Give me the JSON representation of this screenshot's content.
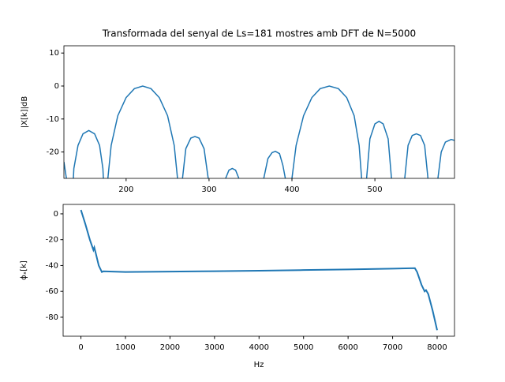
{
  "chart_data": [
    {
      "type": "line",
      "title": "Transformada del senyal de Ls=181 mostres amb DFT de N=5000",
      "ylabel": "|X[k]|dB",
      "color": "#1f77b4",
      "x": [
        125,
        128,
        130,
        134,
        137,
        142,
        148,
        155,
        162,
        168,
        172,
        175,
        176,
        178,
        182,
        190,
        200,
        210,
        220,
        230,
        240,
        250,
        258,
        262,
        264,
        266,
        268,
        272,
        278,
        283,
        288,
        294,
        299,
        301,
        317,
        320,
        324,
        328,
        332,
        336,
        339,
        363,
        366,
        371,
        376,
        380,
        385,
        389,
        392,
        394,
        398,
        400,
        405,
        414,
        424,
        434,
        445,
        456,
        466,
        475,
        481,
        484,
        486,
        488,
        490,
        494,
        500,
        505,
        510,
        516,
        520,
        522,
        534,
        536,
        540,
        545,
        550,
        555,
        560,
        564,
        566,
        574,
        576,
        580,
        585,
        592,
        596
      ],
      "values": [
        -23,
        -28,
        -40,
        -40,
        -25,
        -18,
        -14.5,
        -13.5,
        -14.5,
        -18,
        -25,
        -40,
        -40,
        -28,
        -18,
        -9,
        -3.5,
        -0.8,
        0,
        -0.8,
        -3.5,
        -9,
        -18,
        -28,
        -40,
        -40,
        -28,
        -19,
        -15.8,
        -15.3,
        -15.8,
        -19,
        -28,
        -40,
        -40,
        -28,
        -25.5,
        -25,
        -25.5,
        -28,
        -40,
        -40,
        -28,
        -22,
        -20.2,
        -19.8,
        -20.5,
        -24,
        -28,
        -40,
        -40,
        -28,
        -18,
        -9,
        -3.5,
        -0.8,
        0,
        -0.8,
        -3.5,
        -9,
        -18,
        -28,
        -40,
        -40,
        -28,
        -16,
        -11.5,
        -10.7,
        -11.5,
        -16,
        -28,
        -40,
        -40,
        -28,
        -18,
        -15,
        -14.5,
        -15,
        -18,
        -28,
        -40,
        -40,
        -28,
        -20,
        -17,
        -16.2,
        -16.5
      ],
      "xlim": [
        125,
        596
      ],
      "ylim": [
        -28,
        12.2
      ],
      "xticks": [
        200,
        300,
        400,
        500
      ],
      "yticks": [
        -20,
        -10,
        0,
        10
      ]
    },
    {
      "type": "line",
      "xlabel": "Hz",
      "ylabel": "ϕₓ[k]",
      "color": "#1f77b4",
      "x": [
        0,
        100,
        200,
        250,
        280,
        300,
        330,
        400,
        470,
        500,
        1000,
        2000,
        3000,
        4000,
        5000,
        6000,
        7000,
        7500,
        7550,
        7650,
        7720,
        7750,
        7800,
        7900,
        8000
      ],
      "values": [
        3,
        -8,
        -20,
        -25,
        -28,
        -26,
        -30,
        -40,
        -45,
        -44.5,
        -45,
        -44.7,
        -44.4,
        -44,
        -43.5,
        -43,
        -42.4,
        -42,
        -45,
        -55,
        -60,
        -59,
        -62,
        -75,
        -90
      ],
      "xlim": [
        -400,
        8390
      ],
      "ylim": [
        -94.7,
        7.3
      ],
      "xticks": [
        0,
        1000,
        2000,
        3000,
        4000,
        5000,
        6000,
        7000,
        8000
      ],
      "yticks": [
        -80,
        -60,
        -40,
        -20,
        0
      ]
    }
  ]
}
